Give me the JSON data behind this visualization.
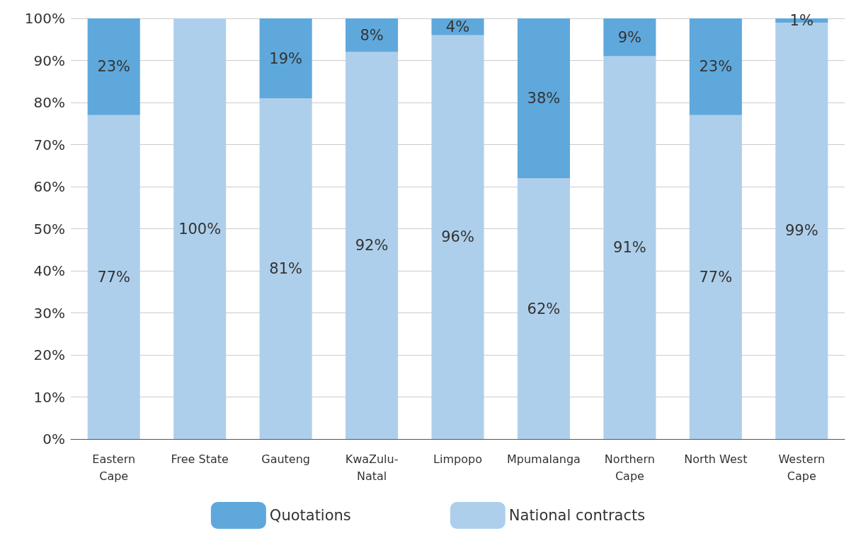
{
  "chart_data": {
    "type": "bar",
    "stacked": true,
    "categories": [
      "Eastern Cape",
      "Free State",
      "Gauteng",
      "KwaZulu-Natal",
      "Limpopo",
      "Mpumalanga",
      "Northern Cape",
      "North West",
      "Western Cape"
    ],
    "series": [
      {
        "name": "National contracts",
        "color": "#aecfeb",
        "values": [
          77,
          100,
          81,
          92,
          96,
          62,
          91,
          77,
          99
        ],
        "value_labels": [
          "77%",
          "100%",
          "81%",
          "92%",
          "96%",
          "62%",
          "91%",
          "77%",
          "99%"
        ]
      },
      {
        "name": "Quotations",
        "color": "#5fa8dc",
        "values": [
          23,
          0,
          19,
          8,
          4,
          38,
          9,
          23,
          1
        ],
        "value_labels": [
          "23%",
          null,
          "19%",
          "8%",
          "4%",
          "38%",
          "9%",
          "23%",
          "1%"
        ]
      }
    ],
    "ylim": [
      0,
      100
    ],
    "yticks": [
      {
        "value": 0,
        "label": "0%"
      },
      {
        "value": 10,
        "label": "10%"
      },
      {
        "value": 20,
        "label": "20%"
      },
      {
        "value": 30,
        "label": "30%"
      },
      {
        "value": 40,
        "label": "40%"
      },
      {
        "value": 50,
        "label": "50%"
      },
      {
        "value": 60,
        "label": "60%"
      },
      {
        "value": 70,
        "label": "70%"
      },
      {
        "value": 80,
        "label": "80%"
      },
      {
        "value": 90,
        "label": "90%"
      },
      {
        "value": 100,
        "label": "100%"
      }
    ],
    "grid": "y",
    "legend": "bottom"
  }
}
